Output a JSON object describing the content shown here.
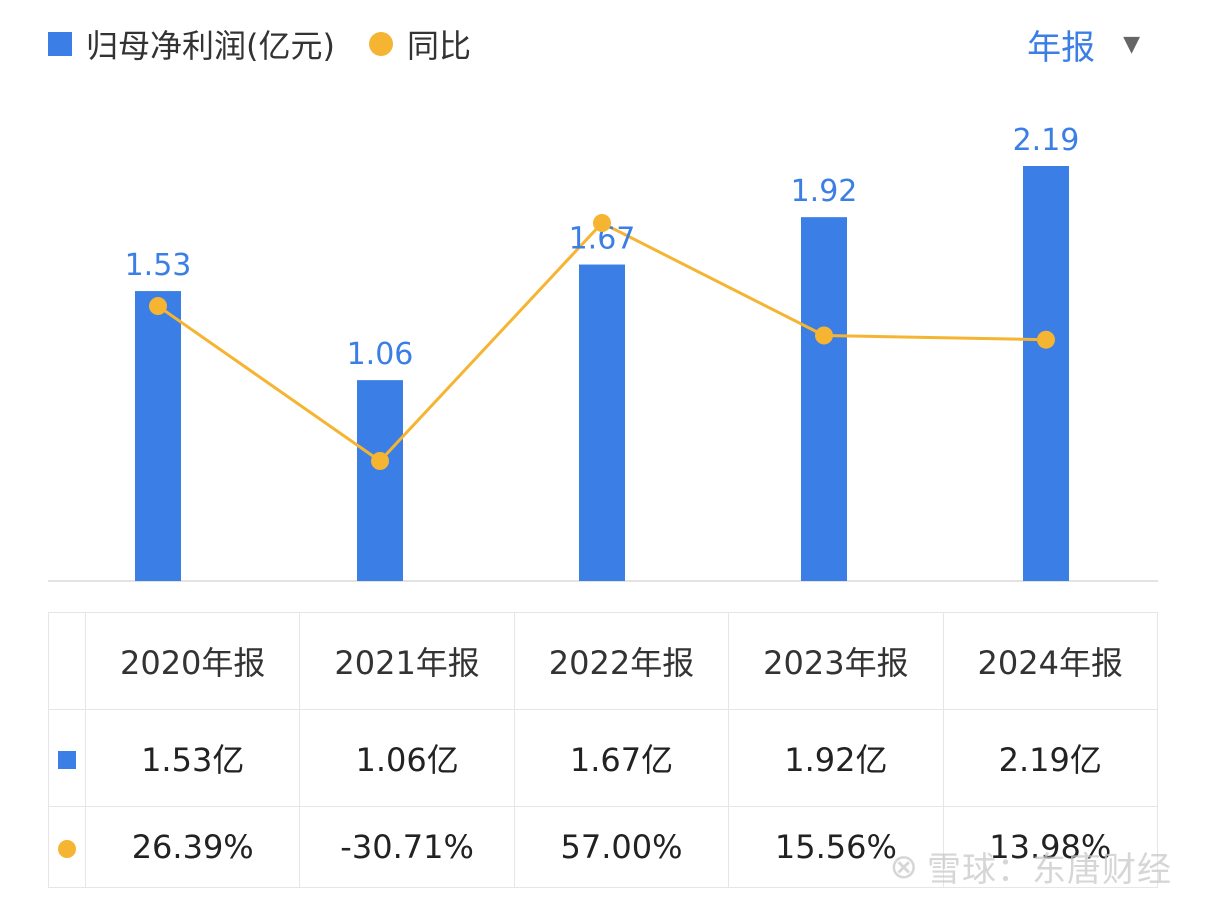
{
  "legend": {
    "bar_label": "归母净利润(亿元)",
    "line_label": "同比"
  },
  "period_selector": {
    "label": "年报",
    "caret": "▼"
  },
  "colors": {
    "bar": "#3b7fe6",
    "line": "#f5b431",
    "positive": "#e0443c",
    "negative": "#1ea37a"
  },
  "chart_data": {
    "type": "bar",
    "categories": [
      "2020年报",
      "2021年报",
      "2022年报",
      "2023年报",
      "2024年报"
    ],
    "series": [
      {
        "name": "归母净利润(亿元)",
        "type": "bar",
        "values": [
          1.53,
          1.06,
          1.67,
          1.92,
          2.19
        ],
        "labels": [
          "1.53",
          "1.06",
          "1.67",
          "1.92",
          "2.19"
        ]
      },
      {
        "name": "同比",
        "type": "line",
        "values": [
          26.39,
          -30.71,
          57.0,
          15.56,
          13.98
        ]
      }
    ],
    "bar_ylim": [
      0,
      2.19
    ],
    "line_ylim": [
      -30.71,
      57.0
    ],
    "grid": false,
    "legend_position": "top-left"
  },
  "table": {
    "headers": [
      "2020年报",
      "2021年报",
      "2022年报",
      "2023年报",
      "2024年报"
    ],
    "profit_row": [
      "1.53亿",
      "1.06亿",
      "1.67亿",
      "1.92亿",
      "2.19亿"
    ],
    "yoy_row": [
      "26.39%",
      "-30.71%",
      "57.00%",
      "15.56%",
      "13.98%"
    ]
  },
  "watermark": {
    "icon": "⊗",
    "text": "雪球：东唐财经"
  }
}
